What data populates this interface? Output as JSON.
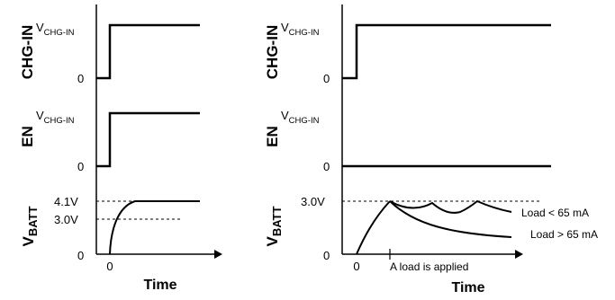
{
  "left_panel": {
    "chg_in": {
      "name": "CHG-IN",
      "high": "V",
      "high_sub": "CHG-IN",
      "low": "0"
    },
    "en": {
      "name": "EN",
      "high": "V",
      "high_sub": "CHG-IN",
      "low": "0"
    },
    "vbatt": {
      "name": "V",
      "name_sub": "BATT",
      "level_high": "4.1V",
      "level_mid": "3.0V",
      "low": "0"
    },
    "time_tick": "0",
    "xlabel": "Time"
  },
  "right_panel": {
    "chg_in": {
      "name": "CHG-IN",
      "high": "V",
      "high_sub": "CHG-IN",
      "low": "0"
    },
    "en": {
      "name": "EN",
      "high": "V",
      "high_sub": "CHG-IN",
      "low": "0"
    },
    "vbatt": {
      "name": "V",
      "name_sub": "BATT",
      "level": "3.0V",
      "low": "0"
    },
    "time_tick": "0",
    "event_label": "A load is applied",
    "curve_low_load": "Load < 65 mA",
    "curve_high_load": "Load > 65 mA",
    "xlabel": "Time"
  }
}
